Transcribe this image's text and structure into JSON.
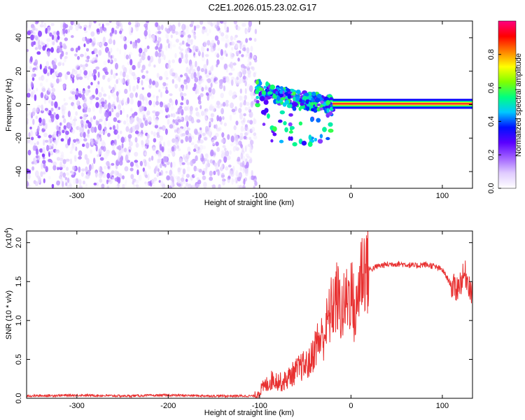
{
  "figure_title": "C2E1.2026.015.23.02.G17",
  "colors": {
    "snr_line": "#e83030",
    "axis": "#000000",
    "background": "#ffffff"
  },
  "chart_data": [
    {
      "type": "heatmap",
      "title": "",
      "xlabel": "Height of straight line (km)",
      "ylabel": "Frequency (Hz)",
      "xlim": [
        -355,
        133
      ],
      "ylim": [
        -50,
        50
      ],
      "x_ticks": [
        -300,
        -200,
        -100,
        0,
        100
      ],
      "y_ticks": [
        -40,
        -20,
        0,
        20,
        40
      ],
      "colorbar": {
        "label": "Normalized spectral amplitude",
        "range": [
          0.0,
          1.0
        ],
        "ticks": [
          "0.0",
          "0.2",
          "0.4",
          "0.6",
          "0.8"
        ],
        "tick_values": [
          0.0,
          0.2,
          0.4,
          0.6,
          0.8
        ],
        "colormap": [
          "#ffffff",
          "#e0ccff",
          "#a060ff",
          "#5a00ff",
          "#0010ff",
          "#00c8ff",
          "#00ff80",
          "#80ff00",
          "#ffff00",
          "#ff8000",
          "#ff0000",
          "#ff0080"
        ]
      },
      "regions": [
        {
          "name": "noise",
          "x_range": [
            -355,
            -104
          ],
          "freq_range": [
            -50,
            50
          ],
          "amplitude": [
            0.0,
            0.2
          ]
        },
        {
          "name": "transition",
          "x_range": [
            -104,
            -20
          ],
          "freq_center_at_start": 12,
          "freq_center_at_end": 0,
          "amplitude": [
            0.2,
            0.6
          ]
        },
        {
          "name": "tracked_signal",
          "x_range": [
            -20,
            133
          ],
          "freq_center": 0.5,
          "bandwidth": 5,
          "peak_amplitude": 0.95
        }
      ]
    },
    {
      "type": "line",
      "title": "",
      "xlabel": "Height of straight line (km)",
      "ylabel": "SNR (10 * v/v)",
      "y_multiplier_label": "(x10",
      "y_multiplier_exp": "4",
      "y_multiplier_close": ")",
      "xlim": [
        -355,
        133
      ],
      "ylim": [
        0.0,
        2.15
      ],
      "x_ticks": [
        -300,
        -200,
        -100,
        0,
        100
      ],
      "y_ticks": [
        "0.0",
        "0.5",
        "1.0",
        "1.5",
        "2.0"
      ],
      "y_tick_values": [
        0.0,
        0.5,
        1.0,
        1.5,
        2.0
      ],
      "series": [
        {
          "x": [
            -355,
            -300,
            -250,
            -200,
            -150,
            -105,
            -95,
            -85,
            -75,
            -65,
            -55,
            -45,
            -38,
            -30,
            -25,
            -20,
            -15,
            -10,
            -5,
            0,
            5,
            10,
            15,
            20,
            30,
            40,
            50,
            60,
            70,
            80,
            90,
            100,
            110,
            115,
            120,
            125,
            130,
            133
          ],
          "values": [
            0.03,
            0.04,
            0.03,
            0.04,
            0.03,
            0.03,
            0.15,
            0.25,
            0.2,
            0.3,
            0.4,
            0.45,
            0.7,
            0.8,
            1.0,
            1.2,
            1.3,
            1.1,
            1.25,
            1.4,
            1.0,
            1.6,
            1.7,
            1.65,
            1.7,
            1.72,
            1.73,
            1.72,
            1.7,
            1.72,
            1.7,
            1.65,
            1.45,
            1.4,
            1.5,
            1.6,
            1.45,
            1.3
          ]
        }
      ]
    }
  ]
}
